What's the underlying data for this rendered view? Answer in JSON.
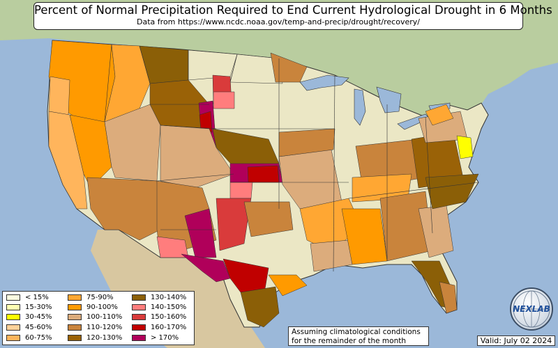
{
  "title": "Percent of Normal Precipitation Required to End Current Hydrological Drought in 6 Months",
  "subtitle": "Data from https://www.ncdc.noaa.gov/temp-and-precip/drought/recovery/",
  "legend": {
    "items": [
      {
        "label": "< 15%",
        "color": "#fbfbe0"
      },
      {
        "label": "15-30%",
        "color": "#ffffb3"
      },
      {
        "label": "30-45%",
        "color": "#ffff00"
      },
      {
        "label": "45-60%",
        "color": "#ffd199"
      },
      {
        "label": "60-75%",
        "color": "#ffb55c"
      },
      {
        "label": "75-90%",
        "color": "#ffa733"
      },
      {
        "label": "90-100%",
        "color": "#ff9a00"
      },
      {
        "label": "100-110%",
        "color": "#dcac7c"
      },
      {
        "label": "110-120%",
        "color": "#c9843c"
      },
      {
        "label": "120-130%",
        "color": "#9a6207"
      },
      {
        "label": "130-140%",
        "color": "#8b5f07"
      },
      {
        "label": "140-150%",
        "color": "#ff7d7d"
      },
      {
        "label": "150-160%",
        "color": "#d93b3b"
      },
      {
        "label": "160-170%",
        "color": "#c00000"
      },
      {
        "label": "> 170%",
        "color": "#b0005a"
      }
    ]
  },
  "note": {
    "line1": "Assuming climatological conditions",
    "line2": "for the remainder of the month"
  },
  "valid": "Valid: July 02 2024",
  "logo_text": "NEXLAB",
  "colors": {
    "ocean": "#9bb8d9",
    "land_green": "#dfe3bd",
    "land_tan": "#d9c9a2",
    "canada_green": "#b8cfa0",
    "no_drought": "#ebe7c5"
  }
}
